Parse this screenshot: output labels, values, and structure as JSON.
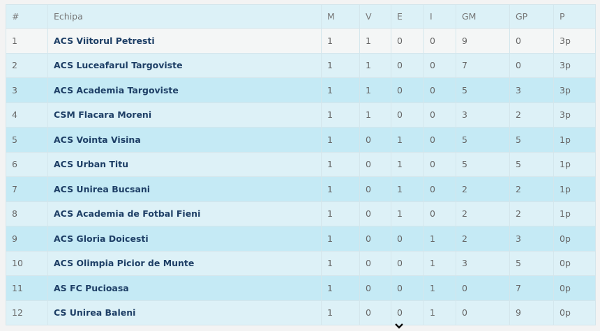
{
  "headers": [
    "#",
    "Echipa",
    "M",
    "V",
    "E",
    "I",
    "GM",
    "GP",
    "P"
  ],
  "rows": [
    [
      "1",
      "ACS Viitorul Petresti",
      "1",
      "1",
      "0",
      "0",
      "9",
      "0",
      "3p"
    ],
    [
      "2",
      "ACS Luceafarul Targoviste",
      "1",
      "1",
      "0",
      "0",
      "7",
      "0",
      "3p"
    ],
    [
      "3",
      "ACS Academia Targoviste",
      "1",
      "1",
      "0",
      "0",
      "5",
      "3",
      "3p"
    ],
    [
      "4",
      "CSM Flacara Moreni",
      "1",
      "1",
      "0",
      "0",
      "3",
      "2",
      "3p"
    ],
    [
      "5",
      "ACS Vointa Visina",
      "1",
      "0",
      "1",
      "0",
      "5",
      "5",
      "1p"
    ],
    [
      "6",
      "ACS Urban Titu",
      "1",
      "0",
      "1",
      "0",
      "5",
      "5",
      "1p"
    ],
    [
      "7",
      "ACS Unirea Bucsani",
      "1",
      "0",
      "1",
      "0",
      "2",
      "2",
      "1p"
    ],
    [
      "8",
      "ACS Academia de Fotbal Fieni",
      "1",
      "0",
      "1",
      "0",
      "2",
      "2",
      "1p"
    ],
    [
      "9",
      "ACS Gloria Doicesti",
      "1",
      "0",
      "0",
      "1",
      "2",
      "3",
      "0p"
    ],
    [
      "10",
      "ACS Olimpia Picior de Munte",
      "1",
      "0",
      "0",
      "1",
      "3",
      "5",
      "0p"
    ],
    [
      "11",
      "AS FC Pucioasa",
      "1",
      "0",
      "0",
      "1",
      "0",
      "7",
      "0p"
    ],
    [
      "12",
      "CS Unirea Baleni",
      "1",
      "0",
      "0",
      "1",
      "0",
      "9",
      "0p"
    ]
  ],
  "scroll_icon": "chevron-down-icon"
}
